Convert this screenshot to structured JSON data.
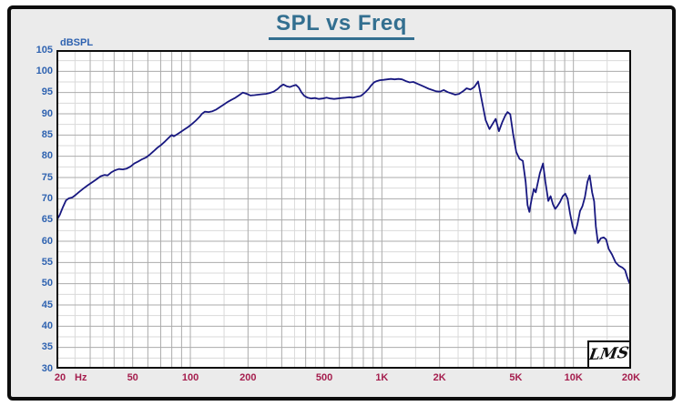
{
  "header": {
    "title": "SPL vs Freq"
  },
  "logo": {
    "text": "LMS"
  },
  "colors": {
    "frame_bg": "#ebebeb",
    "frame_border": "#0d0d0d",
    "title": "#336f90",
    "y_tick": "#2e62b0",
    "x_tick": "#a51e4e",
    "grid_major": "#ababab",
    "grid_minor": "#dadada",
    "curve": "#181880"
  },
  "chart_data": {
    "type": "line",
    "title": "SPL vs Freq",
    "x_axis": {
      "unit": "Hz",
      "scale": "log",
      "min": 20,
      "max": 20000,
      "tick_values": [
        20,
        50,
        100,
        200,
        500,
        1000,
        2000,
        5000,
        10000,
        20000
      ],
      "tick_labels": [
        "20",
        "50",
        "100",
        "200",
        "500",
        "1K",
        "2K",
        "5K",
        "10K",
        "20K"
      ]
    },
    "y_axis": {
      "label": "dBSPL",
      "min": 30,
      "max": 105,
      "tick_step": 5,
      "tick_values": [
        105,
        100,
        95,
        90,
        85,
        80,
        75,
        70,
        65,
        60,
        55,
        50,
        45,
        40,
        35,
        30
      ]
    },
    "grid": {
      "major_mantissas": [
        2,
        3,
        4,
        5,
        6,
        7,
        8,
        9,
        10
      ],
      "minor_mantissas": [
        1.5,
        2.5,
        3.5,
        4.5
      ],
      "minor_db_offset": 2.5
    },
    "series": [
      {
        "name": "SPL",
        "points": [
          [
            20,
            64.8
          ],
          [
            20.8,
            66.2
          ],
          [
            21.6,
            68.0
          ],
          [
            22.4,
            69.6
          ],
          [
            23.2,
            70.1
          ],
          [
            24.2,
            70.3
          ],
          [
            25.2,
            70.9
          ],
          [
            26.4,
            71.7
          ],
          [
            27.8,
            72.5
          ],
          [
            29.2,
            73.2
          ],
          [
            30.8,
            73.9
          ],
          [
            32.4,
            74.6
          ],
          [
            34,
            75.3
          ],
          [
            35.6,
            75.6
          ],
          [
            37,
            75.5
          ],
          [
            38.6,
            76.2
          ],
          [
            40.4,
            76.7
          ],
          [
            42.4,
            77.0
          ],
          [
            44.4,
            76.9
          ],
          [
            46.5,
            77.1
          ],
          [
            48.7,
            77.6
          ],
          [
            51,
            78.3
          ],
          [
            53.5,
            78.8
          ],
          [
            56,
            79.3
          ],
          [
            58.6,
            79.7
          ],
          [
            61.4,
            80.4
          ],
          [
            64.3,
            81.2
          ],
          [
            67.3,
            82.0
          ],
          [
            70.5,
            82.7
          ],
          [
            73.8,
            83.5
          ],
          [
            77.3,
            84.4
          ],
          [
            80,
            85.0
          ],
          [
            82,
            84.7
          ],
          [
            84.8,
            85.1
          ],
          [
            88.8,
            85.7
          ],
          [
            93,
            86.3
          ],
          [
            97.4,
            86.9
          ],
          [
            102,
            87.6
          ],
          [
            106.8,
            88.4
          ],
          [
            111.8,
            89.3
          ],
          [
            115,
            90.0
          ],
          [
            119,
            90.5
          ],
          [
            124.6,
            90.4
          ],
          [
            130.5,
            90.6
          ],
          [
            136.6,
            91.0
          ],
          [
            143,
            91.6
          ],
          [
            149.8,
            92.2
          ],
          [
            156.8,
            92.8
          ],
          [
            164.2,
            93.3
          ],
          [
            172,
            93.8
          ],
          [
            180,
            94.4
          ],
          [
            188,
            95.0
          ],
          [
            197,
            94.7
          ],
          [
            206,
            94.3
          ],
          [
            216,
            94.4
          ],
          [
            226,
            94.5
          ],
          [
            237,
            94.6
          ],
          [
            248,
            94.7
          ],
          [
            260,
            94.9
          ],
          [
            272,
            95.2
          ],
          [
            285,
            95.8
          ],
          [
            296,
            96.5
          ],
          [
            306,
            96.9
          ],
          [
            318,
            96.5
          ],
          [
            331,
            96.3
          ],
          [
            344,
            96.6
          ],
          [
            356,
            96.8
          ],
          [
            368,
            96.2
          ],
          [
            381,
            95.0
          ],
          [
            394,
            94.2
          ],
          [
            409,
            93.8
          ],
          [
            428,
            93.6
          ],
          [
            448,
            93.7
          ],
          [
            469,
            93.5
          ],
          [
            491,
            93.6
          ],
          [
            514,
            93.8
          ],
          [
            538,
            93.6
          ],
          [
            563,
            93.5
          ],
          [
            590,
            93.6
          ],
          [
            617,
            93.7
          ],
          [
            646,
            93.8
          ],
          [
            676,
            93.9
          ],
          [
            708,
            93.8
          ],
          [
            741,
            94.0
          ],
          [
            776,
            94.2
          ],
          [
            812,
            94.9
          ],
          [
            850,
            95.8
          ],
          [
            880,
            96.7
          ],
          [
            910,
            97.4
          ],
          [
            940,
            97.7
          ],
          [
            975,
            97.9
          ],
          [
            1020,
            98.0
          ],
          [
            1065,
            98.1
          ],
          [
            1115,
            98.2
          ],
          [
            1165,
            98.1
          ],
          [
            1220,
            98.2
          ],
          [
            1275,
            98.1
          ],
          [
            1335,
            97.7
          ],
          [
            1395,
            97.4
          ],
          [
            1460,
            97.5
          ],
          [
            1530,
            97.1
          ],
          [
            1600,
            96.7
          ],
          [
            1675,
            96.3
          ],
          [
            1755,
            95.9
          ],
          [
            1835,
            95.6
          ],
          [
            1920,
            95.3
          ],
          [
            2010,
            95.2
          ],
          [
            2105,
            95.6
          ],
          [
            2205,
            95.1
          ],
          [
            2310,
            94.8
          ],
          [
            2415,
            94.5
          ],
          [
            2530,
            94.7
          ],
          [
            2650,
            95.3
          ],
          [
            2770,
            96.0
          ],
          [
            2900,
            95.7
          ],
          [
            3035,
            96.3
          ],
          [
            3180,
            97.6
          ],
          [
            3330,
            93.0
          ],
          [
            3480,
            88.5
          ],
          [
            3645,
            86.4
          ],
          [
            3815,
            87.9
          ],
          [
            3925,
            88.8
          ],
          [
            4085,
            85.9
          ],
          [
            4250,
            88.0
          ],
          [
            4420,
            89.7
          ],
          [
            4530,
            90.4
          ],
          [
            4680,
            89.9
          ],
          [
            4840,
            85.3
          ],
          [
            5030,
            81.0
          ],
          [
            5230,
            79.4
          ],
          [
            5440,
            78.9
          ],
          [
            5630,
            74.0
          ],
          [
            5760,
            68.5
          ],
          [
            5890,
            66.9
          ],
          [
            6040,
            69.7
          ],
          [
            6210,
            72.3
          ],
          [
            6360,
            71.5
          ],
          [
            6680,
            76.0
          ],
          [
            6940,
            78.3
          ],
          [
            7140,
            74.0
          ],
          [
            7390,
            69.5
          ],
          [
            7600,
            70.6
          ],
          [
            7820,
            68.7
          ],
          [
            8030,
            67.6
          ],
          [
            8260,
            68.3
          ],
          [
            8520,
            69.3
          ],
          [
            8800,
            70.6
          ],
          [
            9060,
            71.2
          ],
          [
            9320,
            70.0
          ],
          [
            9600,
            66.5
          ],
          [
            9900,
            63.5
          ],
          [
            10200,
            61.8
          ],
          [
            10500,
            64.0
          ],
          [
            10820,
            67.1
          ],
          [
            11140,
            68.2
          ],
          [
            11480,
            70.4
          ],
          [
            11840,
            74.0
          ],
          [
            12150,
            75.5
          ],
          [
            12520,
            71.5
          ],
          [
            12830,
            69.4
          ],
          [
            13100,
            63.5
          ],
          [
            13420,
            59.6
          ],
          [
            13900,
            60.7
          ],
          [
            14400,
            60.9
          ],
          [
            14820,
            60.4
          ],
          [
            15280,
            58.2
          ],
          [
            15900,
            56.9
          ],
          [
            16600,
            55.0
          ],
          [
            17300,
            54.2
          ],
          [
            18000,
            53.8
          ],
          [
            18600,
            53.2
          ],
          [
            19100,
            51.5
          ],
          [
            19550,
            50.3
          ],
          [
            20000,
            49.5
          ]
        ]
      }
    ]
  }
}
